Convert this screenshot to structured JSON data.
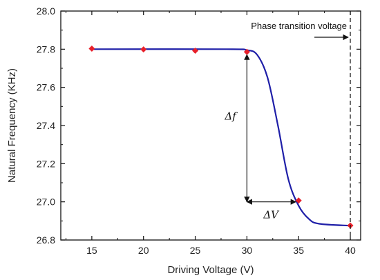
{
  "chart_data": {
    "type": "line",
    "xlabel": "Driving Voltage (V)",
    "ylabel": "Natural Frequency (KHz)",
    "xlim": [
      12,
      41
    ],
    "ylim": [
      26.8,
      28.0
    ],
    "x_ticks": [
      "15",
      "20",
      "25",
      "30",
      "35",
      "40"
    ],
    "y_ticks": [
      "26.8",
      "27.0",
      "27.2",
      "27.4",
      "27.6",
      "27.8",
      "28.0"
    ],
    "grid": false,
    "series": [
      {
        "marker": "diamond",
        "color": "#e8202a",
        "points": [
          {
            "x": 15,
            "y": 27.803
          },
          {
            "x": 20,
            "y": 27.799
          },
          {
            "x": 25,
            "y": 27.792
          },
          {
            "x": 30,
            "y": 27.786
          },
          {
            "x": 35,
            "y": 27.007
          },
          {
            "x": 40,
            "y": 26.876
          }
        ]
      },
      {
        "style": "smooth-fit",
        "color": "#1f1fa8",
        "points": [
          {
            "x": 15,
            "y": 27.8
          },
          {
            "x": 28,
            "y": 27.8
          },
          {
            "x": 30,
            "y": 27.795
          },
          {
            "x": 31,
            "y": 27.77
          },
          {
            "x": 32,
            "y": 27.65
          },
          {
            "x": 33,
            "y": 27.4
          },
          {
            "x": 34,
            "y": 27.12
          },
          {
            "x": 35,
            "y": 26.98
          },
          {
            "x": 36,
            "y": 26.91
          },
          {
            "x": 37,
            "y": 26.885
          },
          {
            "x": 40,
            "y": 26.875
          }
        ]
      }
    ],
    "annotations": {
      "phase_label": "Phase transition voltage",
      "phase_x": 40,
      "delta_f_label": "Δf",
      "delta_v_label": "ΔV",
      "delta_f_x": 30,
      "delta_f_range": [
        27.0,
        27.786
      ],
      "delta_v_y": 27.0,
      "delta_v_range": [
        30,
        35
      ]
    }
  }
}
